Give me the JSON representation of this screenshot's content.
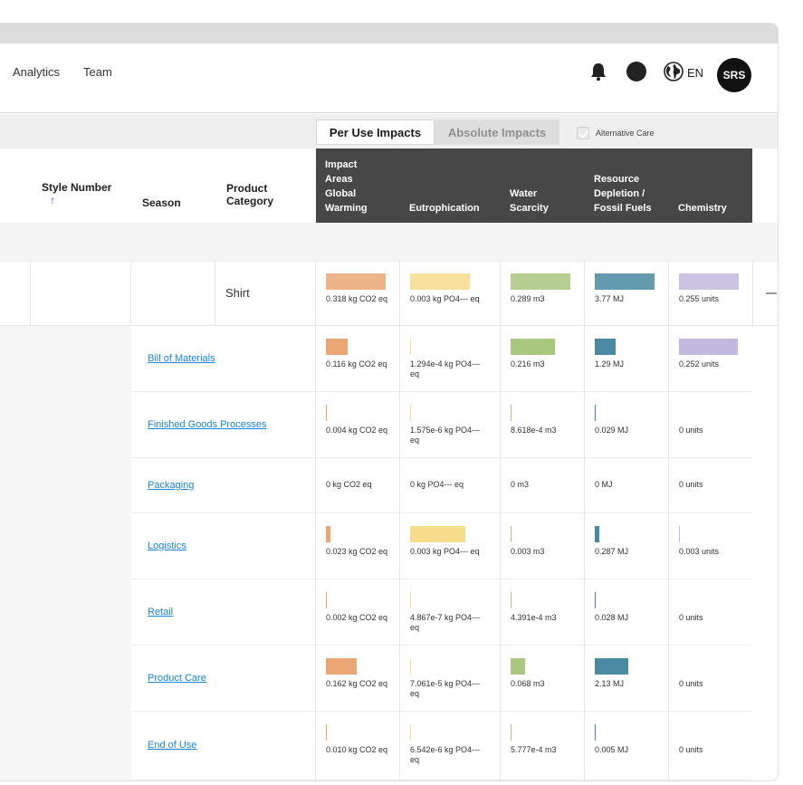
{
  "nav": {
    "analytics": "Analytics",
    "team": "Team",
    "language": "EN",
    "avatar": "SRS",
    "icons": [
      "bell-icon",
      "circle-icon",
      "globe-icon"
    ]
  },
  "toolbar": {
    "per_use": "Per Use Impacts",
    "absolute": "Absolute Impacts",
    "alternative_care": "Alternative Care"
  },
  "columns": {
    "style_number": "Style Number",
    "sort_arrow": "↑",
    "season": "Season",
    "product_category": [
      "Product",
      "Category"
    ],
    "impact_area_title": [
      "Impact",
      "Areas"
    ],
    "global_warming": [
      "Global",
      "Warming"
    ],
    "eutrophication": "Eutrophication",
    "water_scarcity": [
      "Water",
      "Scarcity"
    ],
    "resource_depletion": [
      "Resource",
      "Depletion /",
      "Fossil Fuels"
    ],
    "chemistry": "Chemistry"
  },
  "colors": {
    "global_warming": "#eaa674",
    "eutrophication": "#f7dc8c",
    "water_scarcity": "#a9c77e",
    "resource_depletion": "#4a8aa0",
    "chemistry": "#c3b8de"
  },
  "product": {
    "category": "Shirt",
    "values": [
      {
        "text": "0.318 kg CO2 eq",
        "fill": 1.0
      },
      {
        "text": "0.003 kg PO4--- eq",
        "fill": 1.0
      },
      {
        "text": "0.289 m3",
        "fill": 1.0
      },
      {
        "text": "3.77 MJ",
        "fill": 1.0
      },
      {
        "text": "0.255 units",
        "fill": 1.0
      }
    ]
  },
  "breakdown": [
    {
      "label": "Bill of Materials",
      "values": [
        {
          "text": "0.116 kg CO2 eq",
          "fill": 0.365
        },
        {
          "text": "1.294e-4 kg PO4--- eq",
          "fill": 0.0
        },
        {
          "text": "0.216 m3",
          "fill": 0.747
        },
        {
          "text": "1.29 MJ",
          "fill": 0.342
        },
        {
          "text": "0.252 units",
          "fill": 0.988
        }
      ]
    },
    {
      "label": "Finished Goods Processes",
      "values": [
        {
          "text": "0.004 kg CO2 eq",
          "fill": 0.0
        },
        {
          "text": "1.575e-6 kg PO4--- eq",
          "fill": 0.0
        },
        {
          "text": "8.618e-4 m3",
          "fill": 0.0
        },
        {
          "text": "0.029 MJ",
          "fill": 0.0
        },
        {
          "text": "0 units",
          "fill": null
        }
      ]
    },
    {
      "label": "Packaging",
      "values": [
        {
          "text": "0 kg CO2 eq",
          "fill": null
        },
        {
          "text": "0 kg PO4--- eq",
          "fill": null
        },
        {
          "text": "0 m3",
          "fill": null
        },
        {
          "text": "0 MJ",
          "fill": null
        },
        {
          "text": "0 units",
          "fill": null
        }
      ]
    },
    {
      "label": "Logistics",
      "values": [
        {
          "text": "0.023 kg CO2 eq",
          "fill": 0.072
        },
        {
          "text": "0.003 kg PO4--- eq",
          "fill": 0.92
        },
        {
          "text": "0.003 m3",
          "fill": 0.0
        },
        {
          "text": "0.287 MJ",
          "fill": 0.076
        },
        {
          "text": "0.003 units",
          "fill": 0.0
        }
      ]
    },
    {
      "label": "Retail",
      "values": [
        {
          "text": "0.002 kg CO2 eq",
          "fill": 0.0
        },
        {
          "text": "4.867e-7 kg PO4--- eq",
          "fill": 0.0
        },
        {
          "text": "4.391e-4 m3",
          "fill": 0.0
        },
        {
          "text": "0.028 MJ",
          "fill": 0.0
        },
        {
          "text": "0 units",
          "fill": null
        }
      ]
    },
    {
      "label": "Product Care",
      "values": [
        {
          "text": "0.162 kg CO2 eq",
          "fill": 0.509
        },
        {
          "text": "7.061e-5 kg PO4--- eq",
          "fill": 0.0
        },
        {
          "text": "0.068 m3",
          "fill": 0.235
        },
        {
          "text": "2.13 MJ",
          "fill": 0.565
        },
        {
          "text": "0 units",
          "fill": null
        }
      ]
    },
    {
      "label": "End of Use",
      "values": [
        {
          "text": "0.010 kg CO2 eq",
          "fill": 0.0
        },
        {
          "text": "6.542e-6 kg PO4--- eq",
          "fill": 0.0
        },
        {
          "text": "5.777e-4 m3",
          "fill": 0.0
        },
        {
          "text": "0.005 MJ",
          "fill": 0.0
        },
        {
          "text": "0 units",
          "fill": null
        }
      ]
    }
  ]
}
